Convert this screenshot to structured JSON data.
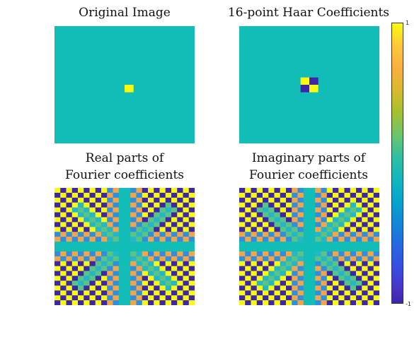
{
  "colors": {
    "background": "#13bdb7",
    "low": "#3e26a8",
    "high": "#f9fb0e",
    "mid_blue": "#2f8fdf",
    "mid_orange": "#f4a547",
    "mid_green": "#5cc483",
    "mid_teal2": "#25b6c8"
  },
  "chart_data": [
    {
      "type": "heatmap",
      "title": "Original Image",
      "grid": {
        "rows": 16,
        "cols": 16
      },
      "clim": [
        -1,
        1
      ],
      "description_values": "single bright pixel at row 8, col 8 (value 1); all others 0",
      "nonzero": [
        {
          "row": 8,
          "col": 8,
          "value": 1
        }
      ]
    },
    {
      "type": "heatmap",
      "title": "16-point Haar Coefficients",
      "grid": {
        "rows": 16,
        "cols": 16
      },
      "clim": [
        -1,
        1
      ],
      "nonzero": [
        {
          "row": 7,
          "col": 7,
          "value": 1
        },
        {
          "row": 7,
          "col": 8,
          "value": -1
        },
        {
          "row": 8,
          "col": 7,
          "value": -1
        },
        {
          "row": 8,
          "col": 8,
          "value": 1
        }
      ]
    },
    {
      "type": "heatmap",
      "title_line1": "Real parts of",
      "title_line2": "Fourier coefficients",
      "grid": {
        "rows": 24,
        "cols": 24
      },
      "clim": [
        -1,
        1
      ],
      "pattern": "checkerboard strong at corners, faint along diagonals/center cross"
    },
    {
      "type": "heatmap",
      "title_line1": "Imaginary parts of",
      "title_line2": "Fourier coefficients",
      "grid": {
        "rows": 24,
        "cols": 24
      },
      "clim": [
        -1,
        1
      ],
      "pattern": "checkerboard strong at corners, faint along diagonals/center cross"
    }
  ],
  "colorbar": {
    "max_label": "1",
    "min_label": "-1"
  }
}
